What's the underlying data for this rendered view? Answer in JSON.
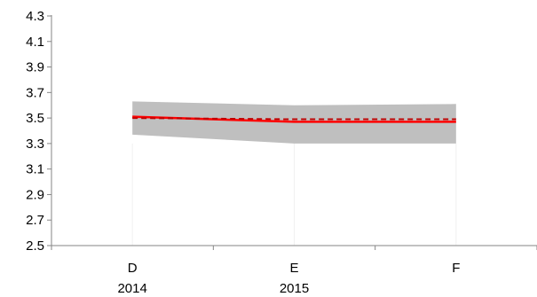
{
  "chart_data": {
    "type": "area",
    "title": "",
    "xlabel": "",
    "ylabel": "",
    "ylim": [
      2.5,
      4.3
    ],
    "y_ticks": [
      2.5,
      2.7,
      2.9,
      3.1,
      3.3,
      3.5,
      3.7,
      3.9,
      4.1,
      4.3
    ],
    "y_tick_labels": [
      "2.5",
      "2.7",
      "2.9",
      "3.1",
      "3.3",
      "3.5",
      "3.7",
      "3.9",
      "4.1",
      "4.3"
    ],
    "categories": [
      "D",
      "E",
      "F"
    ],
    "category_years": [
      "2014",
      "2015",
      ""
    ],
    "grid": false,
    "legend": "none",
    "series": [
      {
        "style": "solid",
        "color": "#ff0000",
        "values": [
          3.51,
          3.47,
          3.47
        ]
      },
      {
        "style": "dashed",
        "color": "#c00000",
        "values": [
          3.5,
          3.49,
          3.49
        ]
      },
      {
        "style": "band",
        "color": "#bfbfbf",
        "upper": [
          3.63,
          3.6,
          3.61
        ],
        "lower": [
          3.37,
          3.3,
          3.3
        ]
      }
    ]
  }
}
